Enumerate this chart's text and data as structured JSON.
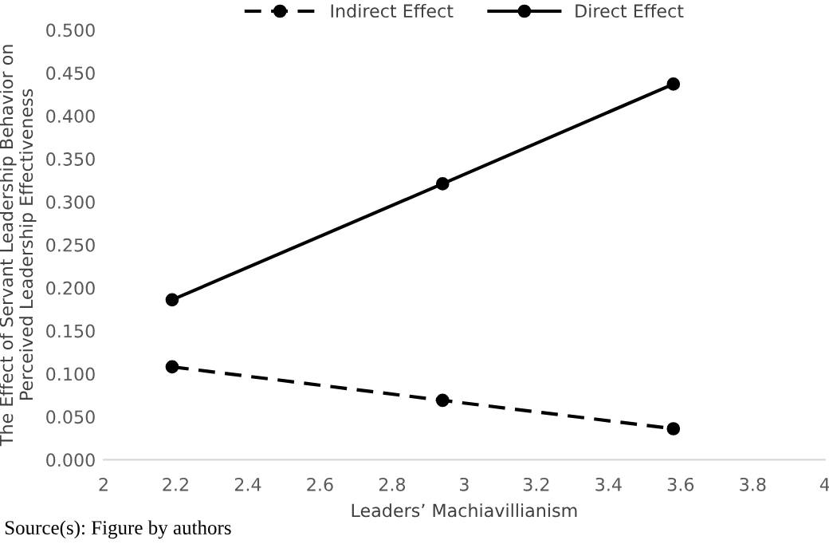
{
  "chart_data": {
    "type": "line",
    "xlabel": "Leaders’ Machiavillianism",
    "ylabel": "The Effect of Servant Leadership Behavior on Perceived Leadership Effectiveness",
    "x": [
      2.19,
      2.94,
      3.58
    ],
    "series": [
      {
        "name": "Indirect Effect",
        "color": "#000000",
        "values": [
          0.108,
          0.069,
          0.036
        ],
        "line_style": "dashed"
      },
      {
        "name": "Direct Effect",
        "color": "#000000",
        "values": [
          0.186,
          0.321,
          0.437
        ],
        "line_style": "solid"
      }
    ],
    "xlim": [
      2,
      4
    ],
    "xticks": [
      2,
      {
        "value": 2.2,
        "label": "2.2"
      },
      {
        "value": 2.4,
        "label": "2.4"
      },
      {
        "value": 2.6,
        "label": "2.6"
      },
      {
        "value": 2.8,
        "label": "2.8"
      },
      3,
      {
        "value": 3.2,
        "label": "3.2"
      },
      {
        "value": 3.4,
        "label": "3.4"
      },
      {
        "value": 3.6,
        "label": "3.6"
      },
      {
        "value": 3.8,
        "label": "3.8"
      },
      4
    ],
    "ylim": [
      0,
      0.5
    ],
    "yticks": [
      {
        "value": 0,
        "label": "0.000"
      },
      {
        "value": 0.05,
        "label": "0.050"
      },
      {
        "value": 0.1,
        "label": "0.100"
      },
      {
        "value": 0.15,
        "label": "0.150"
      },
      {
        "value": 0.2,
        "label": "0.200"
      },
      {
        "value": 0.25,
        "label": "0.250"
      },
      {
        "value": 0.3,
        "label": "0.300"
      },
      {
        "value": 0.35,
        "label": "0.350"
      },
      {
        "value": 0.4,
        "label": "0.400"
      },
      {
        "value": 0.45,
        "label": "0.450"
      },
      {
        "value": 0.5,
        "label": "0.500"
      }
    ],
    "grid": false,
    "legend": "top",
    "marker": "circle",
    "annotations": [
      "Source(s): Figure by authors"
    ]
  }
}
